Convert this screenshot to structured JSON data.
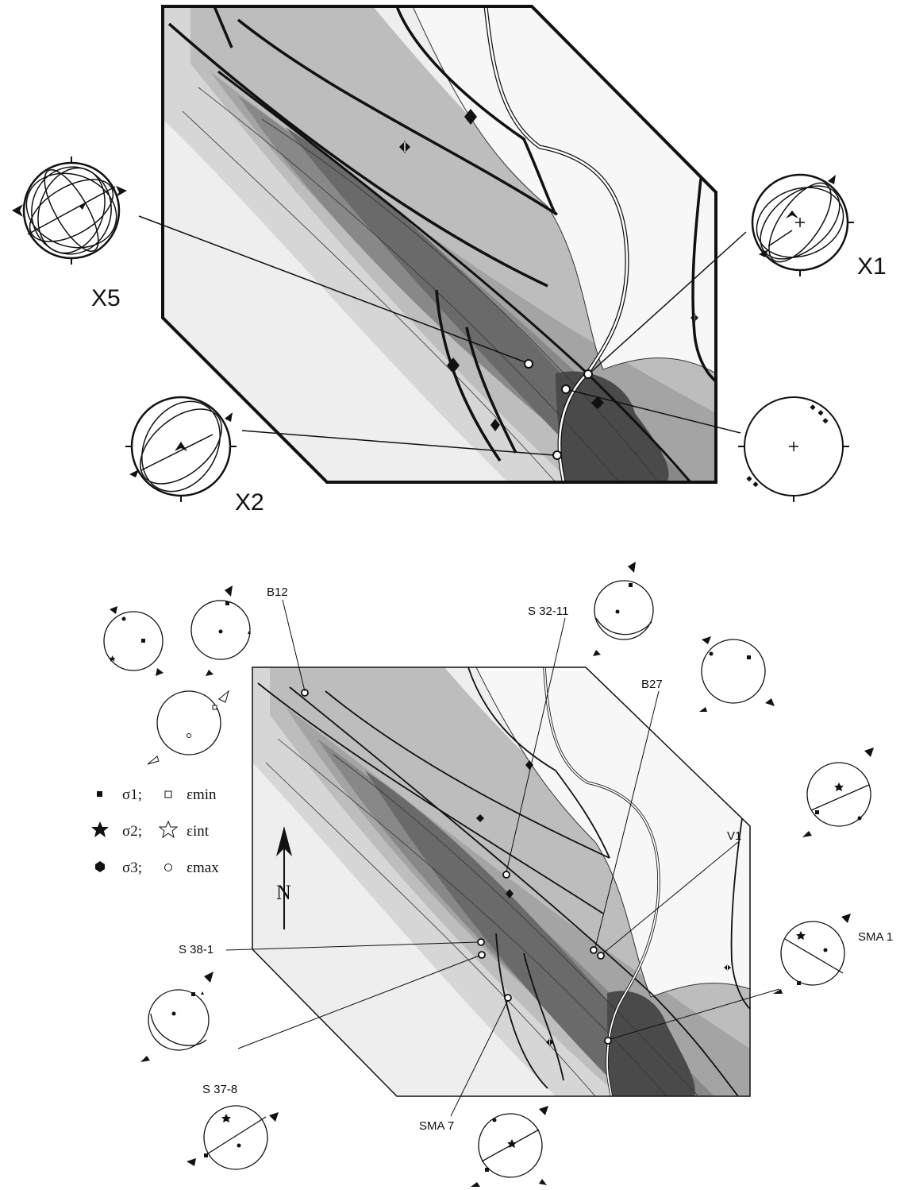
{
  "top_map": {
    "stations": {
      "x5": "X5",
      "x1": "X1",
      "x2": "X2"
    }
  },
  "bottom_map": {
    "stations": {
      "b12": "B12",
      "s32_11": "S 32-11",
      "b27": "B27",
      "v1": "V1",
      "sma1": "SMA 1",
      "s38_1": "S 38-1",
      "s37_8": "S 37-8",
      "sma7": "SMA 7"
    },
    "north_label": "N"
  },
  "legend": {
    "sigma1": "σ1;",
    "eps_min": "εmin",
    "sigma2": "σ2;",
    "eps_int": "εint",
    "sigma3": "σ3;",
    "eps_max": "εmax"
  },
  "colors": {
    "zone1": "#eeeeee",
    "zone2": "#d6d6d6",
    "zone3": "#bdbdbd",
    "zone4": "#a4a4a4",
    "zone5": "#888888",
    "zone6": "#6a6a6a",
    "zone7": "#4a4a4a",
    "ink": "#111111"
  }
}
